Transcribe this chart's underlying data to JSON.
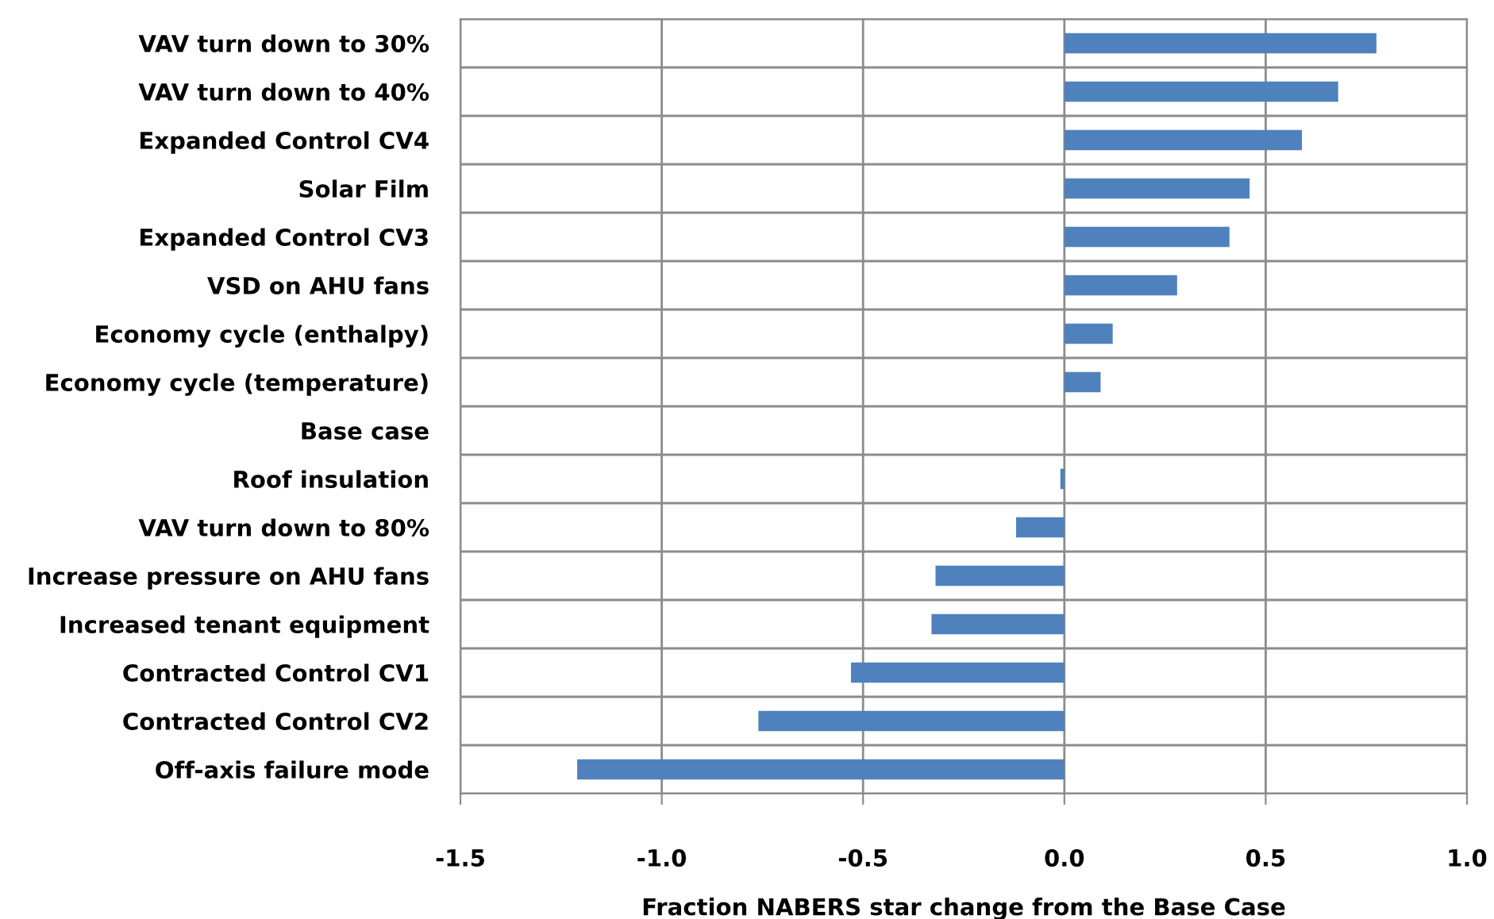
{
  "chart_data": {
    "type": "bar",
    "orientation": "horizontal",
    "xlabel": "Fraction NABERS star change from the Base Case",
    "categories": [
      "VAV turn down to 30%",
      "VAV turn down to 40%",
      "Expanded Control CV4",
      "Solar Film",
      "Expanded Control CV3",
      "VSD on AHU fans",
      "Economy cycle (enthalpy)",
      "Economy cycle (temperature)",
      "Base case",
      "Roof insulation",
      "VAV turn down to 80%",
      "Increase pressure on AHU fans",
      "Increased tenant equipment",
      "Contracted Control CV1",
      "Contracted Control CV2",
      "Off-axis failure mode"
    ],
    "values": [
      0.775,
      0.68,
      0.59,
      0.46,
      0.41,
      0.28,
      0.12,
      0.09,
      0,
      -0.01,
      -0.12,
      -0.32,
      -0.33,
      -0.53,
      -0.76,
      -1.21
    ],
    "color": "#4f81bd",
    "xlim": [
      -1.5,
      1.0
    ],
    "xticks": [
      {
        "value": -1.5,
        "label": "-1.5"
      },
      {
        "value": -1.0,
        "label": "-1.0"
      },
      {
        "value": -0.5,
        "label": "-0.5"
      },
      {
        "value": 0.0,
        "label": "0.0"
      },
      {
        "value": 0.5,
        "label": "0.5"
      },
      {
        "value": 1.0,
        "label": "1.0"
      }
    ],
    "grid": true
  }
}
